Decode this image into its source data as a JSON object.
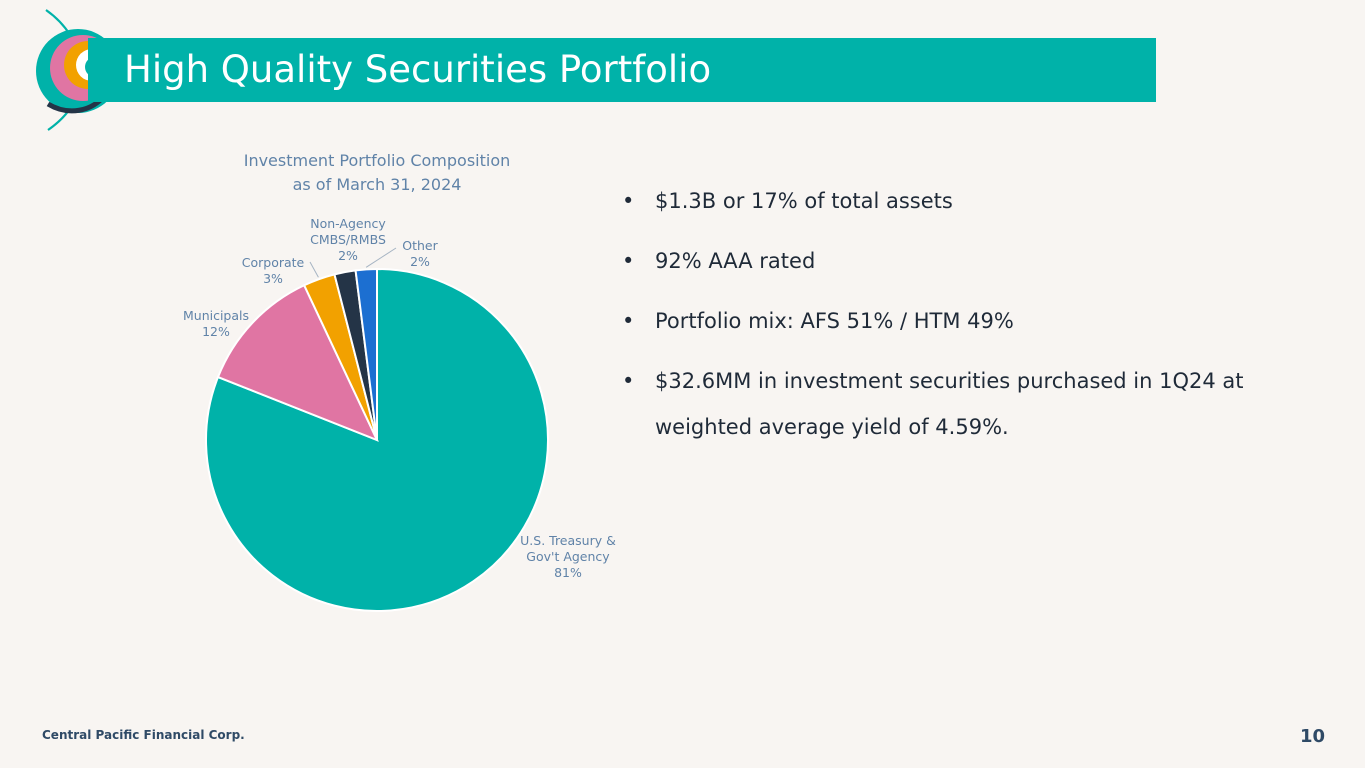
{
  "slide": {
    "title": "High Quality Securities Portfolio",
    "footer_company": "Central Pacific Financial Corp.",
    "page_number": "10"
  },
  "colors": {
    "teal": "#00b2a9",
    "pink": "#e075a3",
    "orange": "#f2a100",
    "navy": "#243447",
    "blue": "#1c6fd1",
    "label": "#6083a8"
  },
  "bullets": [
    "$1.3B or 17% of total assets",
    "92% AAA rated",
    "Portfolio mix: AFS 51% / HTM 49%",
    "$32.6MM in investment securities purchased in 1Q24 at weighted average yield of 4.59%."
  ],
  "chart_data": {
    "type": "pie",
    "title": [
      "Investment Portfolio Composition",
      "as of March 31, 2024"
    ],
    "slices": [
      {
        "label_lines": [
          "U.S. Treasury &",
          "Gov't Agency",
          "81%"
        ],
        "value": 81,
        "color": "#00b2a9"
      },
      {
        "label_lines": [
          "Municipals",
          "12%"
        ],
        "value": 12,
        "color": "#e075a3"
      },
      {
        "label_lines": [
          "Corporate",
          "3%"
        ],
        "value": 3,
        "color": "#f2a100"
      },
      {
        "label_lines": [
          "Non-Agency",
          "CMBS/RMBS",
          "2%"
        ],
        "value": 2,
        "color": "#243447"
      },
      {
        "label_lines": [
          "Other",
          "2%"
        ],
        "value": 2,
        "color": "#1c6fd1"
      }
    ]
  }
}
